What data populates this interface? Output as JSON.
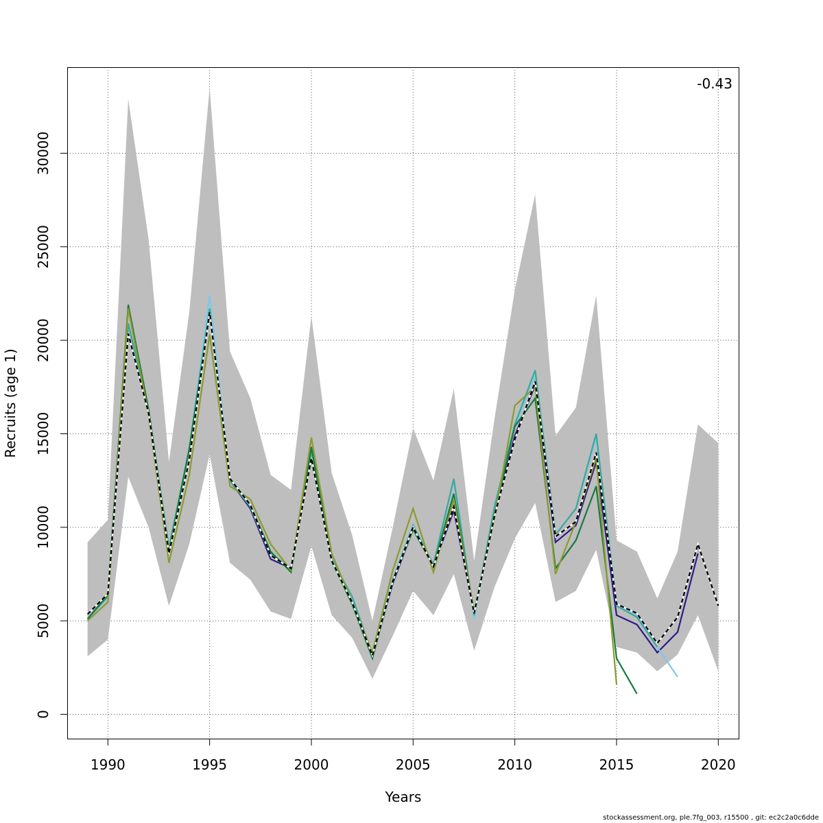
{
  "chart_data": {
    "type": "line",
    "title": "",
    "xlabel": "Years",
    "ylabel": "Recruits (age 1)",
    "annotation": "-0.43",
    "xlim": [
      1988,
      2021
    ],
    "ylim": [
      -1300,
      34600
    ],
    "xticks": [
      1990,
      1995,
      2000,
      2005,
      2010,
      2015,
      2020
    ],
    "yticks": [
      0,
      5000,
      10000,
      15000,
      20000,
      25000,
      30000
    ],
    "grid": true,
    "band": {
      "x": [
        1989,
        1990,
        1991,
        1992,
        1993,
        1994,
        1995,
        1996,
        1997,
        1998,
        1999,
        2000,
        2001,
        2002,
        2003,
        2004,
        2005,
        2006,
        2007,
        2008,
        2009,
        2010,
        2011,
        2012,
        2013,
        2014,
        2015,
        2016,
        2017,
        2018,
        2019,
        2020
      ],
      "upper": [
        9200,
        10400,
        32900,
        25400,
        13500,
        21500,
        33500,
        19400,
        16900,
        12800,
        12000,
        21300,
        12900,
        9600,
        5000,
        10000,
        15300,
        12500,
        17400,
        8200,
        15800,
        22700,
        27800,
        14900,
        16400,
        22400,
        9300,
        8700,
        6200,
        8700,
        15500,
        14500
      ],
      "lower": [
        3100,
        4000,
        12700,
        10000,
        5800,
        9100,
        13900,
        8100,
        7200,
        5500,
        5100,
        9000,
        5300,
        4100,
        1900,
        4200,
        6600,
        5300,
        7500,
        3400,
        6800,
        9400,
        11300,
        6000,
        6600,
        8800,
        3600,
        3300,
        2300,
        3200,
        5300,
        2300
      ]
    },
    "series": [
      {
        "color": "#000000",
        "dash": "6,4",
        "x": [
          1989,
          1990,
          1991,
          1992,
          1993,
          1994,
          1995,
          1996,
          1997,
          1998,
          1999,
          2000,
          2001,
          2002,
          2003,
          2004,
          2005,
          2006,
          2007,
          2008,
          2009,
          2010,
          2011,
          2012,
          2013,
          2014,
          2015,
          2016,
          2017,
          2018,
          2019,
          2020
        ],
        "values": [
          5350,
          6450,
          20350,
          16100,
          8600,
          13600,
          21500,
          12600,
          11200,
          8500,
          7800,
          13700,
          8200,
          6000,
          3150,
          7100,
          10000,
          7900,
          11100,
          5400,
          10600,
          14700,
          17800,
          9500,
          10300,
          14000,
          5900,
          5400,
          3800,
          5200,
          9100,
          5800
        ]
      },
      {
        "color": "#2e1a87",
        "dash": "",
        "x": [
          1989,
          1990,
          1991,
          1992,
          1993,
          1994,
          1995,
          1996,
          1997,
          1998,
          1999,
          2000,
          2001,
          2002,
          2003,
          2004,
          2005,
          2006,
          2007,
          2008,
          2009,
          2010,
          2011,
          2012,
          2013,
          2014,
          2015,
          2016,
          2017,
          2018,
          2019
        ],
        "values": [
          5100,
          6300,
          20900,
          16200,
          8800,
          14200,
          21600,
          12500,
          11000,
          8300,
          7800,
          13700,
          8200,
          6000,
          3100,
          7000,
          9900,
          7900,
          10900,
          5400,
          10600,
          14900,
          17600,
          9200,
          10100,
          13500,
          5300,
          4800,
          3300,
          4400,
          8600
        ]
      },
      {
        "color": "#7ec8ea",
        "dash": "",
        "x": [
          1989,
          1990,
          1991,
          1992,
          1993,
          1994,
          1995,
          1996,
          1997,
          1998,
          1999,
          2000,
          2001,
          2002,
          2003,
          2004,
          2005,
          2006,
          2007,
          2008,
          2009,
          2010,
          2011,
          2012,
          2013,
          2014,
          2015,
          2016,
          2017,
          2018
        ],
        "values": [
          5150,
          6250,
          20900,
          16300,
          8900,
          14200,
          22400,
          12500,
          11100,
          8500,
          7800,
          14000,
          8300,
          6300,
          3200,
          7200,
          10100,
          8000,
          12500,
          5100,
          11100,
          15400,
          18100,
          9600,
          11000,
          14800,
          5900,
          5300,
          3600,
          2000
        ]
      },
      {
        "color": "#3aa89a",
        "dash": "",
        "x": [
          1989,
          1990,
          1991,
          1992,
          1993,
          1994,
          1995,
          1996,
          1997,
          1998,
          1999,
          2000,
          2001,
          2002,
          2003,
          2004,
          2005,
          2006,
          2007,
          2008,
          2009,
          2010,
          2011,
          2012,
          2013,
          2014,
          2015,
          2016,
          2017
        ],
        "values": [
          5100,
          6300,
          20900,
          16200,
          8900,
          14200,
          21700,
          12500,
          11100,
          8600,
          7800,
          14100,
          8300,
          6300,
          3200,
          7200,
          10100,
          8000,
          12600,
          5300,
          11100,
          15500,
          18400,
          9600,
          11000,
          15000,
          5800,
          5200,
          3600
        ]
      },
      {
        "color": "#157a3e",
        "dash": "",
        "x": [
          1989,
          1990,
          1991,
          1992,
          1993,
          1994,
          1995,
          1996,
          1997,
          1998,
          1999,
          2000,
          2001,
          2002,
          2003,
          2004,
          2005,
          2006,
          2007,
          2008,
          2009,
          2010,
          2011,
          2012,
          2013,
          2014,
          2015,
          2016
        ],
        "values": [
          5100,
          6400,
          21900,
          16300,
          8700,
          14200,
          21500,
          12600,
          11200,
          8700,
          7600,
          14300,
          8200,
          5900,
          3000,
          7100,
          9900,
          7900,
          11800,
          5400,
          10700,
          15400,
          16900,
          7800,
          9300,
          12200,
          3000,
          1100
        ]
      },
      {
        "color": "#8c9a2e",
        "dash": "",
        "x": [
          1989,
          1990,
          1991,
          1992,
          1993,
          1994,
          1995,
          1996,
          1997,
          1998,
          1999,
          2000,
          2001,
          2002,
          2003,
          2004,
          2005,
          2006,
          2007,
          2008,
          2009,
          2010,
          2011,
          2012,
          2013,
          2014,
          2015
        ],
        "values": [
          5000,
          6000,
          21700,
          16000,
          8100,
          12800,
          20300,
          12200,
          11500,
          9100,
          7700,
          14800,
          8600,
          6000,
          3300,
          7700,
          11000,
          7600,
          11500,
          5500,
          10500,
          16500,
          17500,
          7500,
          10300,
          13700,
          1600
        ]
      }
    ]
  },
  "footer": "stockassessment.org, ple.7fg_003, r15500 , git: ec2c2a0c6dde"
}
